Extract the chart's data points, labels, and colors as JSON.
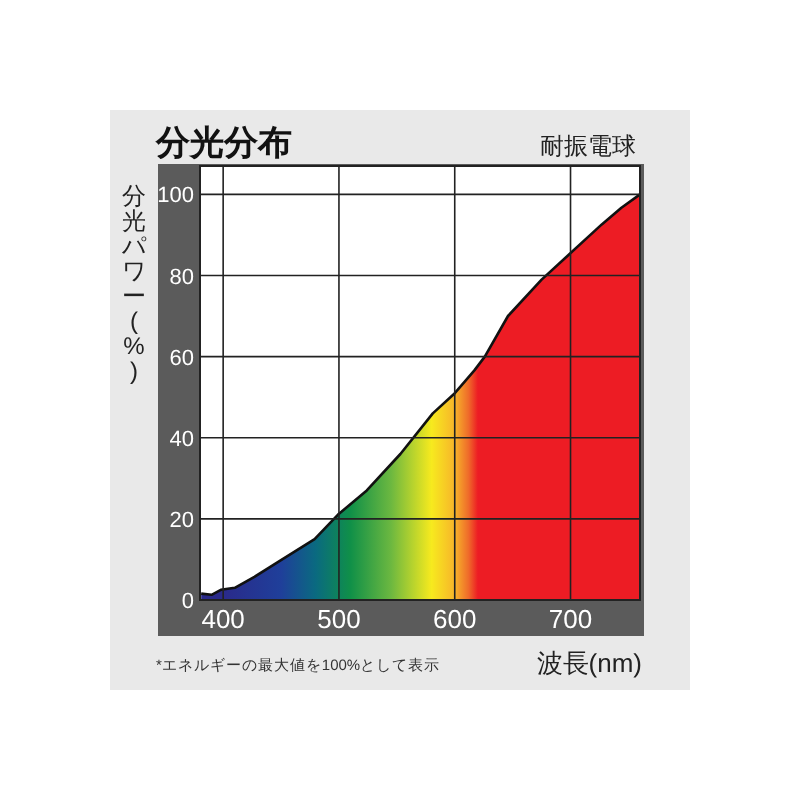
{
  "chart_data": {
    "type": "area",
    "title": "分光分布",
    "subtitle": "耐振電球",
    "xlabel": "波長(nm)",
    "ylabel": "分光パワー(%)",
    "annotations": [
      "*エネルギーの最大値を100%として表示"
    ],
    "xlim": [
      380,
      760
    ],
    "ylim": [
      0,
      107
    ],
    "xticks": [
      400,
      500,
      600,
      700
    ],
    "yticks": [
      0,
      20,
      40,
      60,
      80,
      100
    ],
    "grid": true,
    "series": [
      {
        "color": "#ed1c24",
        "x": [
          381,
          390,
          398,
          410,
          427,
          450,
          479,
          499,
          524,
          553,
          581,
          600,
          617,
          626,
          646,
          675,
          698,
          727,
          744,
          760
        ],
        "values": [
          1.6,
          1.3,
          2.5,
          3,
          5.7,
          9.8,
          15,
          21,
          27,
          36,
          46,
          51,
          56.6,
          60,
          70,
          79,
          85,
          92.6,
          96.7,
          100
        ]
      }
    ]
  }
}
